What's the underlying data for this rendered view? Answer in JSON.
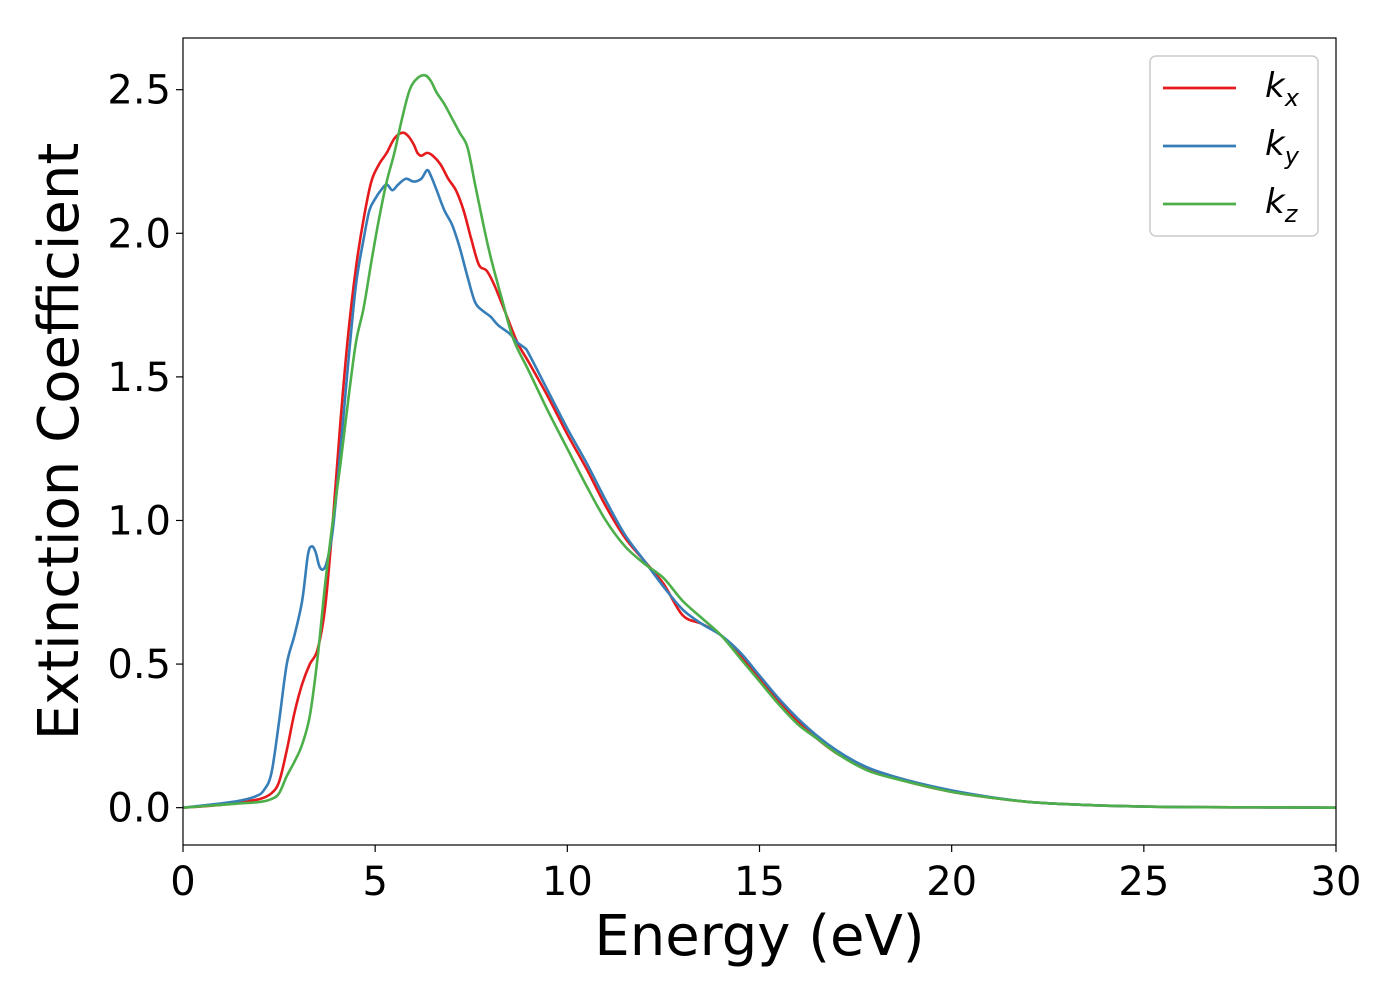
{
  "chart_data": {
    "type": "line",
    "title": "",
    "xlabel": "Energy (eV)",
    "ylabel": "Extinction Coefficient",
    "xlim": [
      0,
      30
    ],
    "ylim": [
      -0.13,
      2.68
    ],
    "xticks": [
      0,
      5,
      10,
      15,
      20,
      25,
      30
    ],
    "xtick_labels": [
      "0",
      "5",
      "10",
      "15",
      "20",
      "25",
      "30"
    ],
    "yticks": [
      0.0,
      0.5,
      1.0,
      1.5,
      2.0,
      2.5
    ],
    "ytick_labels": [
      "0.0",
      "0.5",
      "1.0",
      "1.5",
      "2.0",
      "2.5"
    ],
    "grid": false,
    "legend_position": "top-right",
    "series": [
      {
        "name": "k_x",
        "label_main": "k",
        "label_sub": "x",
        "color": "#e41a1c",
        "x": [
          0,
          1,
          1.5,
          2,
          2.3,
          2.5,
          2.7,
          2.9,
          3.1,
          3.3,
          3.5,
          3.7,
          3.9,
          4.1,
          4.3,
          4.5,
          4.7,
          4.9,
          5.1,
          5.3,
          5.5,
          5.7,
          5.85,
          6.0,
          6.1,
          6.2,
          6.35,
          6.5,
          6.7,
          6.9,
          7.1,
          7.3,
          7.5,
          7.7,
          7.9,
          8.1,
          8.4,
          8.7,
          9.0,
          9.5,
          10,
          10.5,
          11,
          11.5,
          12,
          12.5,
          13,
          13.5,
          14,
          14.5,
          15,
          15.5,
          16,
          16.5,
          17,
          17.5,
          18,
          19,
          20,
          21,
          22,
          23,
          24,
          25,
          26,
          28,
          30
        ],
        "y": [
          0.0,
          0.01,
          0.02,
          0.03,
          0.05,
          0.09,
          0.2,
          0.33,
          0.43,
          0.5,
          0.55,
          0.7,
          1.0,
          1.35,
          1.65,
          1.88,
          2.05,
          2.18,
          2.24,
          2.28,
          2.33,
          2.35,
          2.34,
          2.31,
          2.28,
          2.27,
          2.28,
          2.27,
          2.24,
          2.19,
          2.15,
          2.08,
          1.98,
          1.89,
          1.87,
          1.82,
          1.72,
          1.62,
          1.55,
          1.43,
          1.3,
          1.18,
          1.05,
          0.94,
          0.86,
          0.78,
          0.67,
          0.64,
          0.6,
          0.53,
          0.45,
          0.37,
          0.3,
          0.24,
          0.19,
          0.155,
          0.125,
          0.085,
          0.055,
          0.035,
          0.02,
          0.012,
          0.007,
          0.004,
          0.002,
          0.001,
          0.0
        ]
      },
      {
        "name": "k_y",
        "label_main": "k",
        "label_sub": "y",
        "color": "#377eb8",
        "x": [
          0,
          1,
          1.5,
          1.9,
          2.1,
          2.3,
          2.5,
          2.7,
          2.9,
          3.1,
          3.25,
          3.35,
          3.45,
          3.55,
          3.65,
          3.75,
          3.9,
          4.1,
          4.3,
          4.5,
          4.7,
          4.85,
          5.0,
          5.15,
          5.3,
          5.45,
          5.6,
          5.8,
          6.0,
          6.2,
          6.35,
          6.45,
          6.6,
          6.8,
          7.0,
          7.2,
          7.4,
          7.6,
          7.8,
          8.0,
          8.2,
          8.5,
          8.7,
          8.9,
          9.0,
          9.5,
          10,
          10.5,
          11,
          11.5,
          12,
          12.5,
          13,
          13.5,
          14,
          14.5,
          15,
          15.5,
          16,
          16.5,
          17,
          17.5,
          18,
          19,
          20,
          21,
          22,
          23,
          24,
          25,
          26,
          28,
          30
        ],
        "y": [
          0.0,
          0.015,
          0.025,
          0.04,
          0.06,
          0.12,
          0.3,
          0.5,
          0.6,
          0.72,
          0.88,
          0.91,
          0.89,
          0.84,
          0.83,
          0.86,
          0.97,
          1.25,
          1.55,
          1.82,
          1.98,
          2.08,
          2.12,
          2.15,
          2.17,
          2.15,
          2.17,
          2.19,
          2.18,
          2.19,
          2.22,
          2.2,
          2.15,
          2.08,
          2.03,
          1.95,
          1.85,
          1.76,
          1.73,
          1.71,
          1.68,
          1.65,
          1.62,
          1.6,
          1.58,
          1.45,
          1.32,
          1.2,
          1.07,
          0.95,
          0.86,
          0.77,
          0.69,
          0.64,
          0.6,
          0.54,
          0.46,
          0.38,
          0.31,
          0.25,
          0.2,
          0.16,
          0.13,
          0.09,
          0.06,
          0.037,
          0.02,
          0.012,
          0.007,
          0.004,
          0.002,
          0.001,
          0.0
        ]
      },
      {
        "name": "k_z",
        "label_main": "k",
        "label_sub": "z",
        "color": "#4daf4a",
        "x": [
          0,
          1,
          1.5,
          2,
          2.3,
          2.5,
          2.7,
          2.9,
          3.1,
          3.3,
          3.5,
          3.7,
          3.9,
          4.1,
          4.3,
          4.5,
          4.7,
          4.9,
          5.1,
          5.3,
          5.5,
          5.7,
          5.9,
          6.1,
          6.3,
          6.45,
          6.6,
          6.8,
          7.0,
          7.2,
          7.4,
          7.6,
          7.8,
          8.0,
          8.3,
          8.6,
          9.0,
          9.5,
          10,
          10.5,
          11,
          11.5,
          12,
          12.5,
          13,
          13.5,
          14,
          14.5,
          15,
          15.5,
          16,
          16.5,
          17,
          17.5,
          18,
          19,
          20,
          21,
          22,
          23,
          24,
          25,
          26,
          28,
          30
        ],
        "y": [
          0.0,
          0.01,
          0.015,
          0.02,
          0.03,
          0.05,
          0.11,
          0.16,
          0.22,
          0.32,
          0.52,
          0.78,
          1.0,
          1.2,
          1.42,
          1.62,
          1.74,
          1.9,
          2.05,
          2.18,
          2.28,
          2.4,
          2.5,
          2.54,
          2.55,
          2.53,
          2.49,
          2.45,
          2.4,
          2.35,
          2.3,
          2.17,
          2.04,
          1.92,
          1.77,
          1.63,
          1.52,
          1.38,
          1.25,
          1.12,
          1.0,
          0.91,
          0.85,
          0.8,
          0.72,
          0.66,
          0.6,
          0.52,
          0.44,
          0.36,
          0.29,
          0.24,
          0.19,
          0.15,
          0.12,
          0.085,
          0.055,
          0.035,
          0.02,
          0.012,
          0.007,
          0.004,
          0.002,
          0.001,
          0.0
        ]
      }
    ]
  }
}
